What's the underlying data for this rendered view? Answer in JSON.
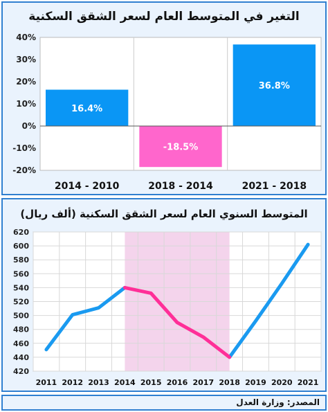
{
  "chart_data": [
    {
      "type": "bar",
      "title": "التغير في المتوسط العام لسعر الشقق السكنية",
      "categories": [
        "2014 - 2010",
        "2018 - 2014",
        "2021 - 2018"
      ],
      "values": [
        16.4,
        -18.5,
        36.8
      ],
      "value_labels": [
        "16.4%",
        "-18.5%",
        "36.8%"
      ],
      "ylim": [
        -20,
        40
      ],
      "yticks": [
        40,
        30,
        20,
        10,
        0,
        -10,
        -20
      ],
      "ytick_labels": [
        "40%",
        "30%",
        "20%",
        "10%",
        "0%",
        "-10%",
        "-20%"
      ],
      "colors": [
        "#0a96f5",
        "#ff66cc",
        "#0a96f5"
      ],
      "grid": true
    },
    {
      "type": "line",
      "title": "المتوسط السنوي العام لسعر الشقق السكنية (ألف ريال)",
      "x": [
        2011,
        2012,
        2013,
        2014,
        2015,
        2016,
        2017,
        2018,
        2019,
        2020,
        2021
      ],
      "values": [
        451,
        501,
        511,
        540,
        532,
        490,
        469,
        440,
        492,
        546,
        602
      ],
      "ylim": [
        420,
        620
      ],
      "yticks": [
        620,
        600,
        580,
        560,
        540,
        520,
        500,
        480,
        460,
        440,
        420
      ],
      "highlight_range": [
        2014,
        2018
      ],
      "segment_colors": {
        "rise": "#1a9af0",
        "decline": "#ff2f98"
      },
      "highlight_color": "#f4d4ec",
      "grid": true
    }
  ],
  "footer": {
    "source": "المصدر: وزارة العدل"
  }
}
